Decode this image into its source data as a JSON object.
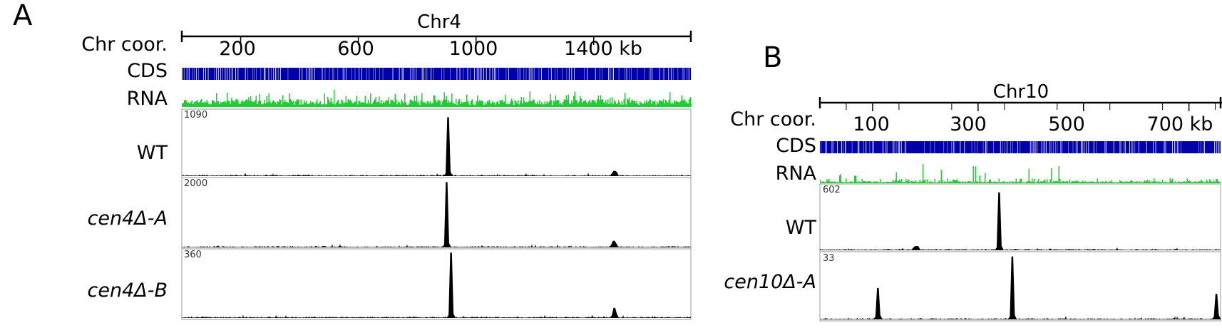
{
  "panels": [
    {
      "letter": "A",
      "chromosome": "Chr4",
      "track_labels": {
        "coordinates": "Chr coor.",
        "cds": "CDS",
        "rna": "RNA"
      },
      "axis": {
        "unit": "kb",
        "tick_labels": [
          "200",
          "600",
          "1000",
          "1400 kb"
        ]
      },
      "samples": [
        {
          "label": "WT",
          "scale_max": "1090"
        },
        {
          "label": "cen4Δ-A",
          "scale_max": "2000"
        },
        {
          "label": "cen4Δ-B",
          "scale_max": "360"
        }
      ]
    },
    {
      "letter": "B",
      "chromosome": "Chr10",
      "track_labels": {
        "coordinates": "Chr coor.",
        "cds": "CDS",
        "rna": "RNA"
      },
      "axis": {
        "unit": "kb",
        "tick_labels": [
          "100",
          "300",
          "500",
          "700 kb"
        ]
      },
      "samples": [
        {
          "label": "WT",
          "scale_max": "602"
        },
        {
          "label": "cen10Δ-A",
          "scale_max": "33"
        }
      ]
    }
  ],
  "chart_data": [
    {
      "type": "area",
      "chromosome": "Chr4",
      "x_unit": "kb",
      "xlim": [
        0,
        1730
      ],
      "x_ticks": [
        200,
        600,
        1000,
        1400
      ],
      "cds_color": "#0000a8",
      "rna_color": "#22cc33",
      "signal_color": "#000000",
      "series": [
        {
          "name": "WT",
          "ylim": [
            0,
            1090
          ],
          "peaks": [
            {
              "x": 905,
              "y": 1000
            },
            {
              "x": 1470,
              "y": 90
            }
          ]
        },
        {
          "name": "cen4Δ-A",
          "ylim": [
            0,
            2000
          ],
          "peaks": [
            {
              "x": 900,
              "y": 1950
            },
            {
              "x": 1468,
              "y": 200
            }
          ]
        },
        {
          "name": "cen4Δ-B",
          "ylim": [
            0,
            360
          ],
          "peaks": [
            {
              "x": 915,
              "y": 355
            },
            {
              "x": 1470,
              "y": 55
            }
          ]
        }
      ]
    },
    {
      "type": "area",
      "chromosome": "Chr10",
      "x_unit": "kb",
      "xlim": [
        0,
        760
      ],
      "x_ticks": [
        100,
        300,
        500,
        700
      ],
      "cds_color": "#0000a8",
      "rna_color": "#22cc33",
      "signal_color": "#000000",
      "series": [
        {
          "name": "WT",
          "ylim": [
            0,
            602
          ],
          "peaks": [
            {
              "x": 340,
              "y": 550
            },
            {
              "x": 182,
              "y": 40
            }
          ]
        },
        {
          "name": "cen10Δ-A",
          "ylim": [
            0,
            33
          ],
          "peaks": [
            {
              "x": 365,
              "y": 32
            },
            {
              "x": 110,
              "y": 16
            },
            {
              "x": 752,
              "y": 13
            }
          ]
        }
      ]
    }
  ]
}
